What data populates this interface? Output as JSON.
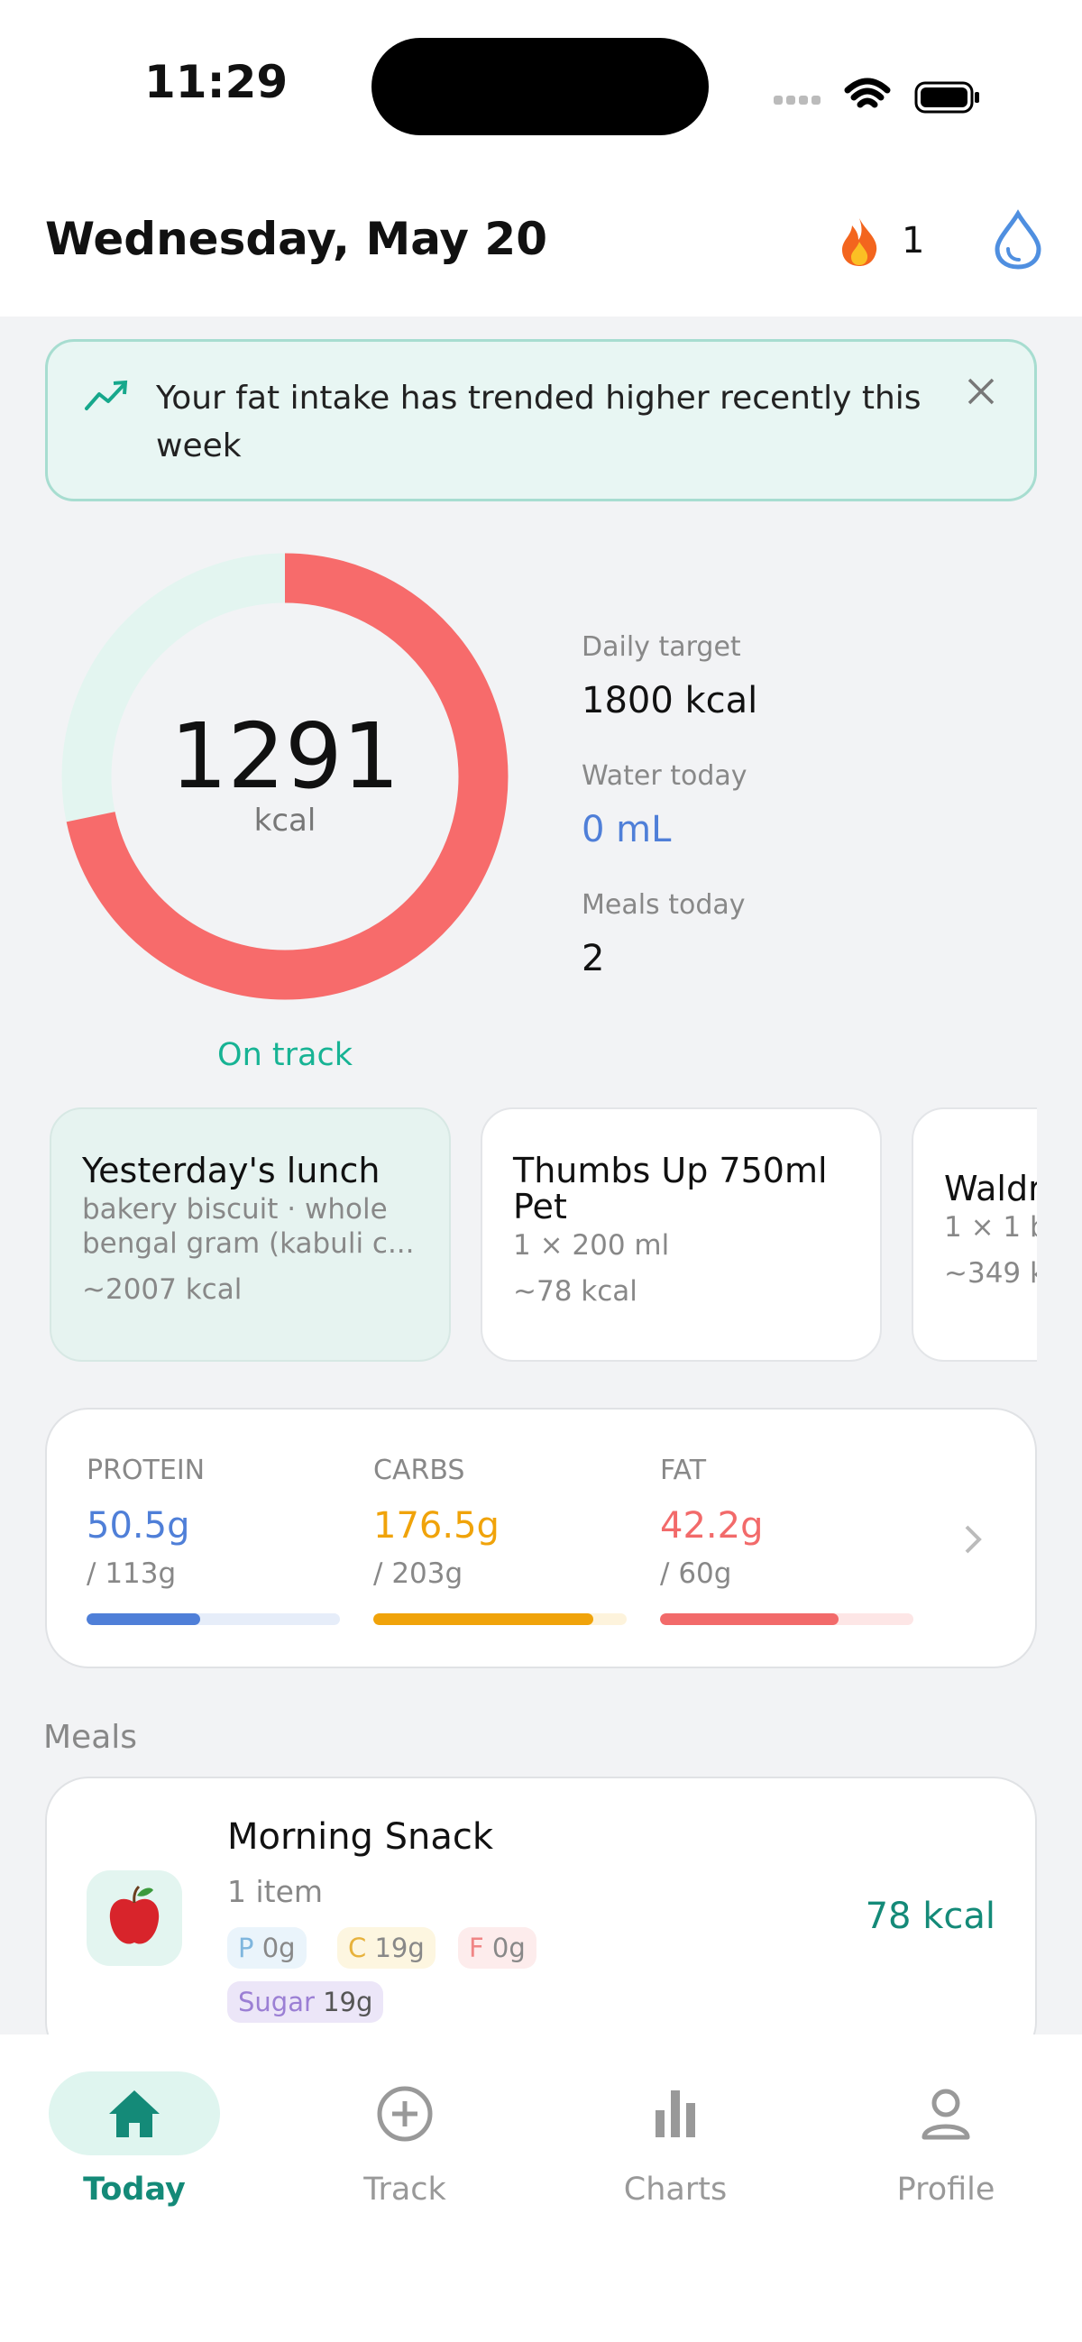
{
  "status_bar": {
    "time": "11:29"
  },
  "header": {
    "title": "Wednesday, May 20",
    "streak": 1
  },
  "banner": {
    "text": "Your fat intake has trended higher recently this week"
  },
  "calories": {
    "value": 1291,
    "unit": "kcal",
    "status": "On track"
  },
  "stats": [
    {
      "label": "Daily target",
      "value": 1800,
      "unit": "kcal"
    },
    {
      "label": "Water today",
      "value": 0,
      "unit": "mL"
    },
    {
      "label": "Meals today",
      "value": 2
    }
  ],
  "suggestions": [
    {
      "title": "Yesterday's lunch",
      "detail": "bakery biscuit · whole bengal gram (kabuli c...",
      "calories": "~2007 kcal"
    },
    {
      "title": "Thumbs Up 750ml Pet",
      "detail": "1 × 200 ml",
      "calories": "~78 kcal"
    },
    {
      "title": "Waldr",
      "detail": "1 × 1 bo",
      "calories": "~349 k"
    }
  ],
  "macros": [
    {
      "name": "PROTEIN",
      "amount": 50.5,
      "target": 113,
      "unit": "g",
      "color": "#4f7fd8",
      "track": "#e6edf9"
    },
    {
      "name": "CARBS",
      "amount": 176.5,
      "target": 203,
      "unit": "g",
      "color": "#f0a30a",
      "track": "#fdf3dc"
    },
    {
      "name": "FAT",
      "amount": 42.2,
      "target": 60,
      "unit": "g",
      "color": "#f26a6a",
      "track": "#fde6e6"
    }
  ],
  "macro_separator": "/",
  "meals_heading": "Meals",
  "meals": [
    {
      "name": "Morning Snack",
      "items": "1 item",
      "calories": "78 kcal",
      "chips": [
        {
          "key": "P",
          "amount": "0g"
        },
        {
          "key": "C",
          "amount": "19g"
        },
        {
          "key": "F",
          "amount": "0g"
        },
        {
          "key": "Sugar",
          "amount": "19g"
        }
      ]
    }
  ],
  "nav": [
    {
      "label": "Today",
      "active": true
    },
    {
      "label": "Track"
    },
    {
      "label": "Charts"
    },
    {
      "label": "Profile"
    }
  ]
}
